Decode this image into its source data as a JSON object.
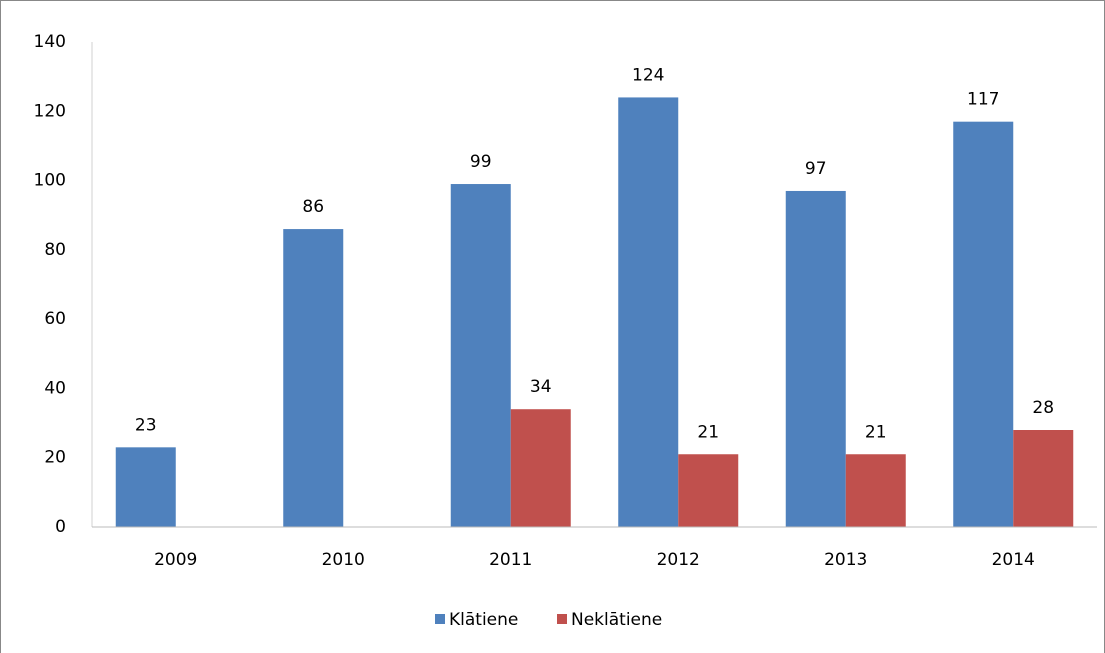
{
  "chart_data": {
    "type": "bar",
    "categories": [
      "2009",
      "2010",
      "2011",
      "2012",
      "2013",
      "2014"
    ],
    "series": [
      {
        "name": "Klātiene",
        "color": "#4f81bd",
        "values": [
          23,
          86,
          99,
          124,
          97,
          117
        ]
      },
      {
        "name": "Neklātiene",
        "color": "#c0504d",
        "values": [
          null,
          null,
          34,
          21,
          21,
          28
        ]
      }
    ],
    "ylim": [
      0,
      140
    ],
    "yticks": [
      0,
      20,
      40,
      60,
      80,
      100,
      120,
      140
    ],
    "grid": false,
    "legend": "bottom"
  }
}
